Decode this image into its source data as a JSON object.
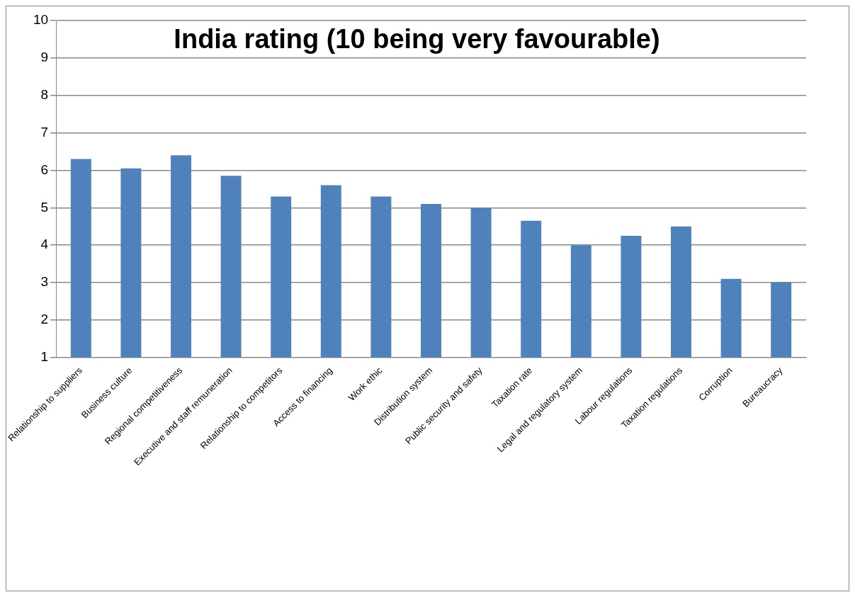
{
  "chart_data": {
    "type": "bar",
    "title": "India rating (10 being very favourable)",
    "categories": [
      "Relationship to suppliers",
      "Business culture",
      "Regional competitiveness",
      "Executive and staff remuneration",
      "Relationship to competitors",
      "Access to financing",
      "Work ethic",
      "Distribution system",
      "Public security and safety",
      "Taxation rate",
      "Legal and regulatory system",
      "Labour regulations",
      "Taxation regulations",
      "Corruption",
      "Bureaucracy"
    ],
    "values": [
      6.3,
      6.05,
      6.4,
      5.85,
      5.3,
      5.6,
      5.3,
      5.1,
      5.0,
      4.65,
      4.0,
      4.25,
      4.5,
      3.1,
      3.0
    ],
    "color": "#4f81bd",
    "ylim": [
      1,
      10
    ],
    "yticks": [
      1,
      2,
      3,
      4,
      5,
      6,
      7,
      8,
      9,
      10
    ],
    "grid": "y",
    "legend": false
  }
}
